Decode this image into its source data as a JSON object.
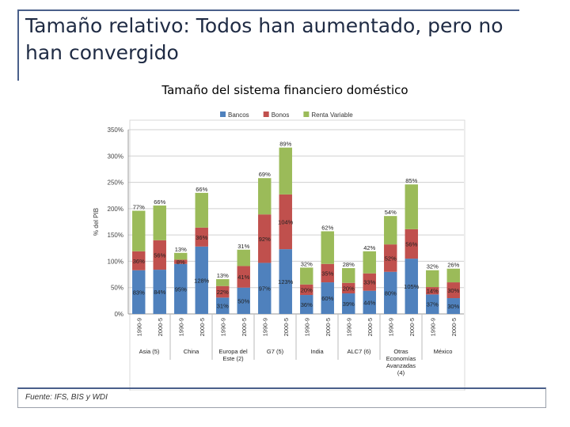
{
  "slide": {
    "title": "Tamaño relativo: Todos han aumentado, pero no han convergido",
    "subtitle": "Tamaño del sistema financiero doméstico",
    "source": "Fuente: IFS, BIS y WDI"
  },
  "chart_data": {
    "type": "stacked-bar",
    "title": "Tamaño del sistema financiero doméstico",
    "ylabel": "% del PIB",
    "ylim": [
      0,
      350
    ],
    "yticks": [
      "0%",
      "50%",
      "100%",
      "150%",
      "200%",
      "250%",
      "300%",
      "350%"
    ],
    "grid": true,
    "legend_position": "top",
    "series": [
      {
        "name": "Bancos",
        "color": "#4f81bd"
      },
      {
        "name": "Bonos",
        "color": "#c0504d"
      },
      {
        "name": "Renta Variable",
        "color": "#9bbb59"
      }
    ],
    "groups": [
      {
        "name": "Asia (5)",
        "bars": [
          {
            "period": "1990-9",
            "values": [
              83,
              36,
              77
            ],
            "labels": [
              "83%",
              "36%",
              "77%"
            ]
          },
          {
            "period": "2000-5",
            "values": [
              84,
              56,
              66
            ],
            "labels": [
              "84%",
              "56%",
              "66%"
            ]
          }
        ]
      },
      {
        "name": "China",
        "bars": [
          {
            "period": "1990-9",
            "values": [
              95,
              8,
              13
            ],
            "labels": [
              "95%",
              "8%",
              "13%"
            ]
          },
          {
            "period": "2000-5",
            "values": [
              128,
              36,
              66
            ],
            "labels": [
              "128%",
              "36%",
              "66%"
            ]
          }
        ]
      },
      {
        "name": "Europa del Este (2)",
        "bars": [
          {
            "period": "1990-9",
            "values": [
              31,
              22,
              13
            ],
            "labels": [
              "31%",
              "22%",
              "13%"
            ]
          },
          {
            "period": "2000-5",
            "values": [
              50,
              41,
              31
            ],
            "labels": [
              "50%",
              "41%",
              "31%"
            ]
          }
        ]
      },
      {
        "name": "G7 (5)",
        "bars": [
          {
            "period": "1990-9",
            "values": [
              97,
              92,
              69
            ],
            "labels": [
              "97%",
              "92%",
              "69%"
            ]
          },
          {
            "period": "2000-5",
            "values": [
              123,
              104,
              89
            ],
            "labels": [
              "123%",
              "104%",
              "89%"
            ]
          }
        ]
      },
      {
        "name": "India",
        "bars": [
          {
            "period": "1990-9",
            "values": [
              36,
              20,
              32
            ],
            "labels": [
              "36%",
              "20%",
              "32%"
            ]
          },
          {
            "period": "2000-5",
            "values": [
              60,
              35,
              62
            ],
            "labels": [
              "60%",
              "35%",
              "62%"
            ]
          }
        ]
      },
      {
        "name": "ALC7 (6)",
        "bars": [
          {
            "period": "1990-9",
            "values": [
              39,
              20,
              28
            ],
            "labels": [
              "39%",
              "20%",
              "28%"
            ]
          },
          {
            "period": "2000-5",
            "values": [
              44,
              33,
              42
            ],
            "labels": [
              "44%",
              "33%",
              "42%"
            ]
          }
        ]
      },
      {
        "name": "Otras Economías Avanzadas (4)",
        "bars": [
          {
            "period": "1990-9",
            "values": [
              80,
              52,
              54
            ],
            "labels": [
              "80%",
              "52%",
              "54%"
            ]
          },
          {
            "period": "2000-5",
            "values": [
              105,
              56,
              85
            ],
            "labels": [
              "105%",
              "56%",
              "85%"
            ]
          }
        ]
      },
      {
        "name": "México",
        "bars": [
          {
            "period": "1990-9",
            "values": [
              37,
              14,
              32
            ],
            "labels": [
              "37%",
              "14%",
              "32%"
            ]
          },
          {
            "period": "2000-5",
            "values": [
              30,
              30,
              26
            ],
            "labels": [
              "30%",
              "30%",
              "26%"
            ]
          }
        ]
      }
    ]
  }
}
